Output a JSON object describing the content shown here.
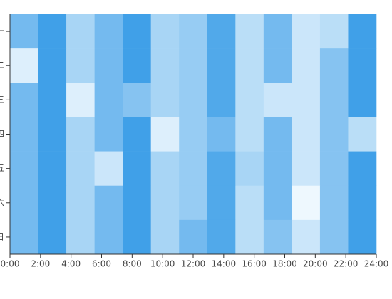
{
  "chart_data": {
    "type": "heatmap",
    "y_categories": [
      "一",
      "二",
      "三",
      "四",
      "五",
      "六",
      "日"
    ],
    "xlim": [
      0,
      24
    ],
    "xticks": [
      {
        "value": 0,
        "label": "0:00"
      },
      {
        "value": 2,
        "label": "2:00"
      },
      {
        "value": 4,
        "label": "4:00"
      },
      {
        "value": 6,
        "label": "6:00"
      },
      {
        "value": 8,
        "label": "8:00"
      },
      {
        "value": 10,
        "label": "10:00"
      },
      {
        "value": 12,
        "label": "12:00"
      },
      {
        "value": 14,
        "label": "14:00"
      },
      {
        "value": 16,
        "label": "16:00"
      },
      {
        "value": 18,
        "label": "18:00"
      },
      {
        "value": 20,
        "label": "20:00"
      },
      {
        "value": 22,
        "label": "22:00"
      },
      {
        "value": 24,
        "label": "24:00"
      }
    ],
    "values": [
      [
        7,
        10,
        4,
        7,
        10,
        4,
        5,
        9,
        3,
        7,
        2,
        3,
        10
      ],
      [
        1,
        10,
        4,
        7,
        10,
        4,
        5,
        9,
        3,
        7,
        2,
        6,
        10
      ],
      [
        7,
        10,
        1,
        7,
        6,
        4,
        5,
        9,
        3,
        2,
        2,
        6,
        10
      ],
      [
        7,
        10,
        4,
        7,
        10,
        1,
        5,
        7,
        3,
        7,
        2,
        6,
        3
      ],
      [
        7,
        10,
        4,
        2,
        10,
        4,
        5,
        9,
        4,
        7,
        2,
        6,
        10
      ],
      [
        7,
        10,
        4,
        7,
        10,
        4,
        5,
        9,
        3,
        7,
        0,
        6,
        10
      ],
      [
        7,
        10,
        4,
        7,
        10,
        4,
        7,
        9,
        3,
        6,
        2,
        6,
        10
      ]
    ],
    "color_scale": [
      "#eef8fe",
      "#40a0e8"
    ]
  }
}
